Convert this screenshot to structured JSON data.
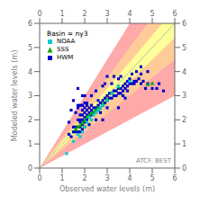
{
  "chart_data": {
    "type": "scatter",
    "title": "Basin = ny3",
    "xlabel": "Observed water levels (m)",
    "ylabel": "Modeled water levels (m)",
    "annotation": "ATCF: BEST",
    "xlim": [
      0,
      6
    ],
    "ylim": [
      0,
      6
    ],
    "xticks": [
      0,
      1,
      2,
      3,
      4,
      5,
      6
    ],
    "yticks": [
      0,
      1,
      2,
      3,
      4,
      5,
      6
    ],
    "legend": "upper left",
    "bands": [
      {
        "factor": 0.5,
        "color": "#ffaaaa"
      },
      {
        "factor": 0.25,
        "color": "#ffcc99"
      },
      {
        "factor": 0.1,
        "color": "#ffff99"
      }
    ],
    "series": [
      {
        "name": "NOAA",
        "color": "#00cccc",
        "marker": "square",
        "values": [
          [
            1.2,
            0.6
          ],
          [
            1.5,
            1.1
          ],
          [
            1.7,
            1.4
          ],
          [
            1.8,
            1.3
          ],
          [
            1.9,
            1.5
          ],
          [
            2.0,
            1.7
          ],
          [
            2.1,
            1.9
          ],
          [
            2.2,
            2.1
          ],
          [
            2.3,
            2.0
          ],
          [
            2.4,
            2.2
          ],
          [
            2.5,
            2.3
          ],
          [
            2.6,
            2.4
          ],
          [
            2.7,
            2.5
          ],
          [
            2.8,
            2.6
          ],
          [
            3.0,
            2.8
          ],
          [
            3.2,
            3.1
          ],
          [
            3.5,
            3.4
          ],
          [
            4.0,
            3.6
          ]
        ]
      },
      {
        "name": "SSS",
        "color": "#00aa00",
        "marker": "triangle",
        "values": [
          [
            1.6,
            1.6
          ],
          [
            1.7,
            1.7
          ],
          [
            1.8,
            1.75
          ],
          [
            1.9,
            1.85
          ],
          [
            2.0,
            1.95
          ],
          [
            2.1,
            2.1
          ],
          [
            2.2,
            2.15
          ],
          [
            2.3,
            2.25
          ],
          [
            2.4,
            2.3
          ],
          [
            2.5,
            2.4
          ],
          [
            2.6,
            2.5
          ],
          [
            2.8,
            2.65
          ],
          [
            3.0,
            2.85
          ],
          [
            3.2,
            3.1
          ],
          [
            3.5,
            3.35
          ],
          [
            4.8,
            3.45
          ],
          [
            5.0,
            3.5
          ]
        ]
      },
      {
        "name": "HWM",
        "color": "#0000cc",
        "marker": "square",
        "values": [
          [
            1.3,
            1.4
          ],
          [
            1.4,
            1.3
          ],
          [
            1.5,
            1.5
          ],
          [
            1.5,
            1.7
          ],
          [
            1.6,
            1.5
          ],
          [
            1.6,
            1.7
          ],
          [
            1.7,
            1.5
          ],
          [
            1.7,
            1.7
          ],
          [
            1.7,
            2.0
          ],
          [
            1.7,
            2.5
          ],
          [
            1.7,
            2.6
          ],
          [
            1.7,
            3.3
          ],
          [
            1.8,
            1.5
          ],
          [
            1.8,
            1.7
          ],
          [
            1.8,
            1.9
          ],
          [
            1.8,
            2.0
          ],
          [
            1.8,
            2.2
          ],
          [
            1.8,
            2.6
          ],
          [
            1.9,
            1.6
          ],
          [
            1.9,
            1.8
          ],
          [
            1.9,
            2.0
          ],
          [
            1.9,
            2.2
          ],
          [
            1.9,
            2.4
          ],
          [
            1.9,
            2.6
          ],
          [
            2.0,
            1.7
          ],
          [
            2.0,
            1.9
          ],
          [
            2.0,
            2.1
          ],
          [
            2.0,
            2.3
          ],
          [
            2.0,
            2.5
          ],
          [
            2.0,
            2.7
          ],
          [
            2.1,
            2.0
          ],
          [
            2.1,
            2.2
          ],
          [
            2.1,
            2.4
          ],
          [
            2.1,
            2.6
          ],
          [
            2.2,
            2.1
          ],
          [
            2.2,
            2.3
          ],
          [
            2.2,
            2.5
          ],
          [
            2.3,
            2.2
          ],
          [
            2.3,
            2.4
          ],
          [
            2.3,
            2.6
          ],
          [
            2.4,
            2.3
          ],
          [
            2.4,
            2.5
          ],
          [
            2.5,
            2.3
          ],
          [
            2.5,
            2.5
          ],
          [
            2.6,
            2.4
          ],
          [
            2.6,
            2.6
          ],
          [
            2.7,
            2.5
          ],
          [
            2.7,
            2.7
          ],
          [
            2.8,
            2.6
          ],
          [
            2.8,
            2.8
          ],
          [
            2.9,
            2.7
          ],
          [
            2.9,
            2.9
          ],
          [
            3.0,
            2.8
          ],
          [
            3.0,
            3.0
          ],
          [
            3.1,
            2.9
          ],
          [
            3.1,
            3.1
          ],
          [
            3.2,
            2.9
          ],
          [
            3.2,
            3.1
          ],
          [
            3.3,
            3.0
          ],
          [
            3.3,
            3.2
          ],
          [
            3.4,
            3.0
          ],
          [
            3.4,
            3.2
          ],
          [
            3.5,
            3.1
          ],
          [
            3.5,
            3.3
          ],
          [
            3.6,
            3.1
          ],
          [
            3.6,
            3.3
          ],
          [
            3.7,
            3.2
          ],
          [
            3.7,
            3.4
          ],
          [
            3.8,
            3.3
          ],
          [
            3.8,
            3.5
          ],
          [
            3.9,
            3.4
          ],
          [
            3.9,
            3.6
          ],
          [
            4.0,
            3.5
          ],
          [
            4.0,
            3.7
          ],
          [
            4.1,
            3.5
          ],
          [
            4.2,
            3.6
          ],
          [
            4.3,
            3.6
          ],
          [
            4.4,
            3.7
          ],
          [
            4.5,
            3.5
          ],
          [
            4.6,
            3.6
          ],
          [
            4.7,
            3.3
          ],
          [
            4.8,
            3.5
          ],
          [
            5.0,
            3.3
          ],
          [
            5.2,
            3.3
          ],
          [
            1.5,
            2.8
          ],
          [
            2.5,
            2.0
          ],
          [
            2.2,
            1.8
          ],
          [
            1.4,
            2.4
          ],
          [
            2.8,
            2.0
          ],
          [
            3.0,
            2.5
          ],
          [
            3.5,
            2.5
          ],
          [
            3.7,
            3.0
          ],
          [
            4.1,
            3.9
          ],
          [
            3.8,
            2.9
          ],
          [
            3.2,
            3.5
          ],
          [
            3.6,
            3.8
          ],
          [
            3.9,
            3.2
          ],
          [
            2.3,
            3.0
          ],
          [
            2.7,
            2.3
          ],
          [
            4.5,
            3.9
          ],
          [
            1.9,
            3.0
          ],
          [
            2.0,
            3.0
          ],
          [
            2.5,
            3.2
          ],
          [
            2.8,
            3.4
          ],
          [
            3.3,
            3.8
          ],
          [
            3.5,
            3.7
          ],
          [
            4.2,
            3.5
          ],
          [
            4.5,
            4.2
          ],
          [
            4.3,
            4.0
          ],
          [
            3.0,
            3.8
          ],
          [
            2.9,
            3.5
          ],
          [
            2.6,
            2.8
          ],
          [
            2.1,
            2.7
          ],
          [
            1.6,
            2.3
          ],
          [
            1.3,
            1.9
          ],
          [
            5.5,
            3.2
          ],
          [
            5.3,
            3.5
          ],
          [
            4.8,
            4.0
          ]
        ]
      }
    ]
  }
}
